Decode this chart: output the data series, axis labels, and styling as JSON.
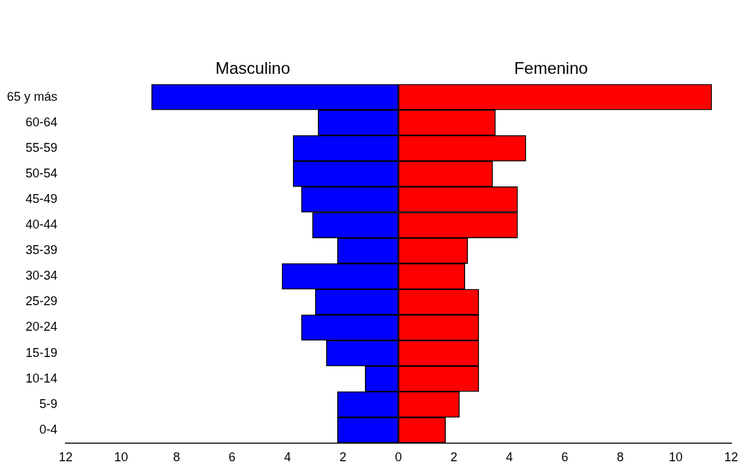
{
  "chart_data": {
    "type": "bar",
    "orientation": "horizontal",
    "stacked": true,
    "grid": false,
    "legend": false,
    "categories": [
      "65 y más",
      "60-64",
      "55-59",
      "50-54",
      "45-49",
      "40-44",
      "35-39",
      "30-34",
      "25-29",
      "20-24",
      "15-19",
      "10-14",
      "5-9",
      "0-4"
    ],
    "series": [
      {
        "name": "Masculino",
        "color": "#0000ff",
        "values": [
          -8.9,
          -2.9,
          -3.8,
          -3.8,
          -3.5,
          -3.1,
          -2.2,
          -4.2,
          -3.0,
          -3.5,
          -2.6,
          -1.2,
          -2.2,
          -2.2
        ]
      },
      {
        "name": "Femenino",
        "color": "#ff0000",
        "values": [
          11.3,
          3.5,
          4.6,
          3.4,
          4.3,
          4.3,
          2.5,
          2.4,
          2.9,
          2.9,
          2.9,
          2.9,
          2.2,
          1.7
        ]
      }
    ],
    "xlim": [
      -12,
      12
    ],
    "xticks": [
      {
        "value": -12,
        "label": "12"
      },
      {
        "value": -10,
        "label": "10"
      },
      {
        "value": -8,
        "label": "8"
      },
      {
        "value": -6,
        "label": "6"
      },
      {
        "value": -4,
        "label": "4"
      },
      {
        "value": -2,
        "label": "2"
      },
      0,
      2,
      4,
      6,
      8,
      10,
      12
    ]
  }
}
